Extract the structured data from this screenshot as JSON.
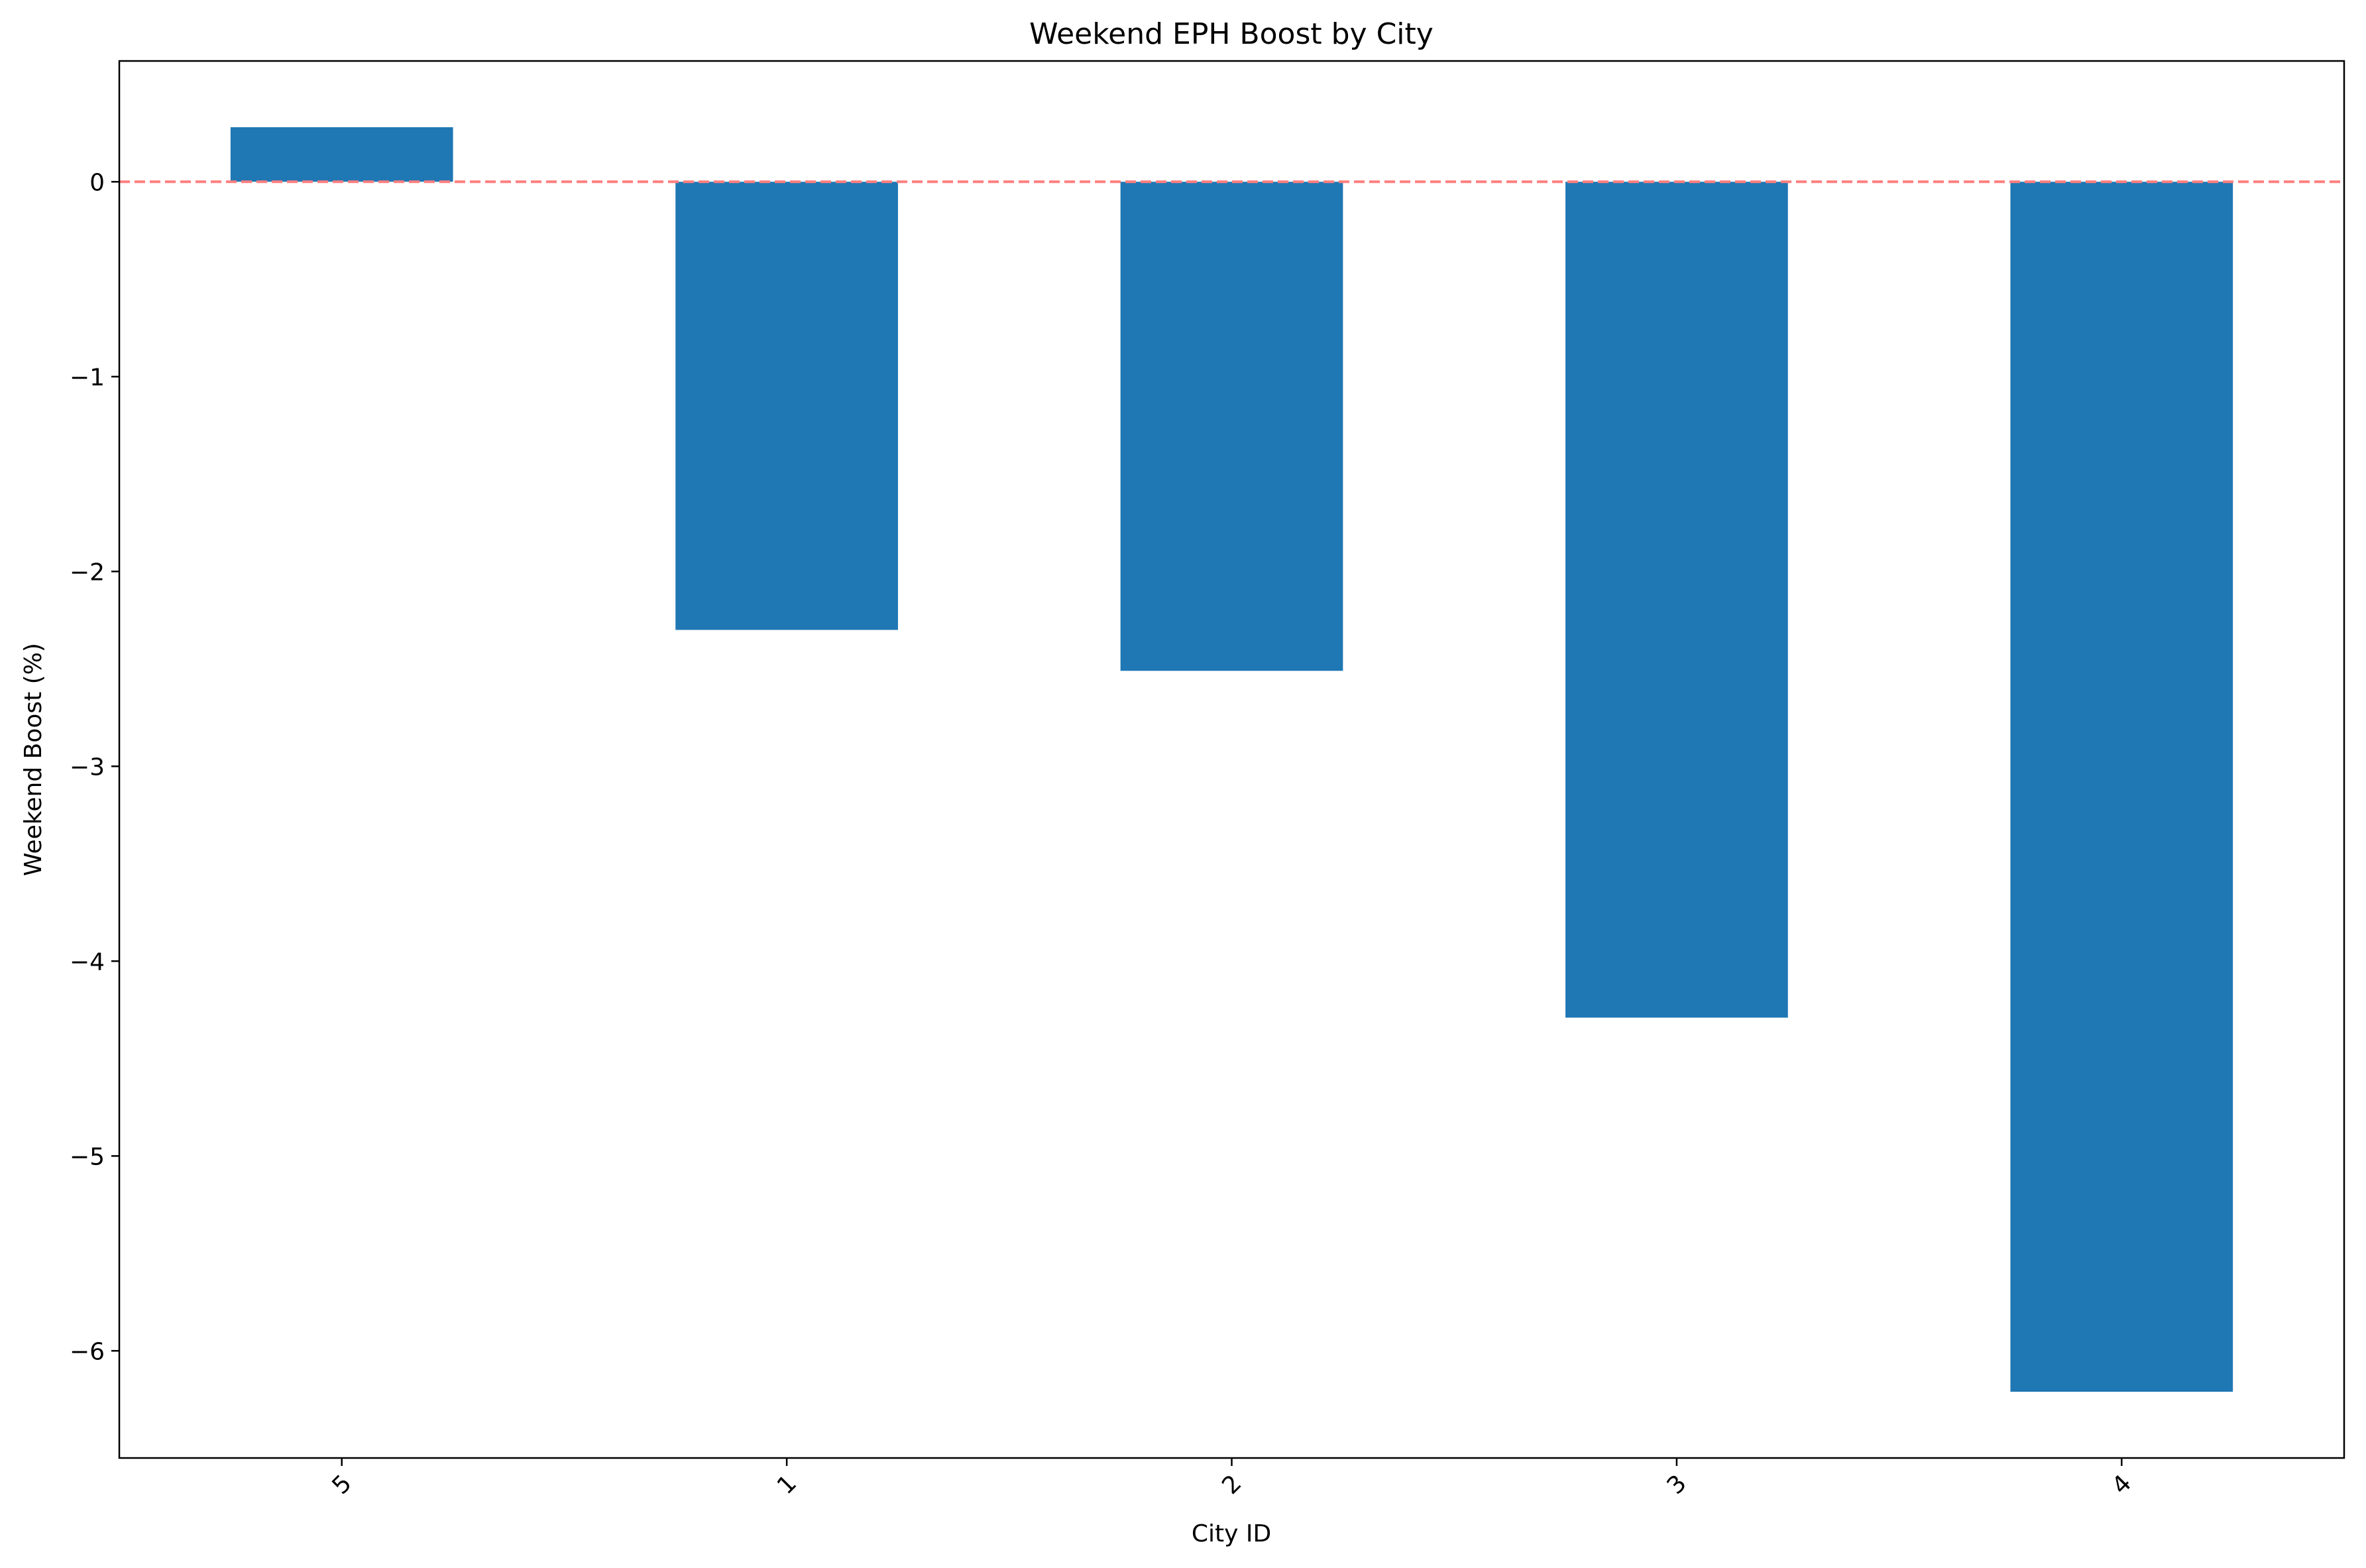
{
  "chart_data": {
    "type": "bar",
    "title": "Weekend EPH Boost by City",
    "xlabel": "City ID",
    "ylabel": "Weekend Boost (%)",
    "categories": [
      "5",
      "1",
      "2",
      "3",
      "4"
    ],
    "values": [
      0.28,
      -2.3,
      -2.51,
      -4.29,
      -6.21
    ],
    "ylim": [
      -6.55,
      0.62
    ],
    "yticks": [
      0,
      -1,
      -2,
      -3,
      -4,
      -5,
      -6
    ],
    "ytick_labels": [
      "0",
      "−1",
      "−2",
      "−3",
      "−4",
      "−5",
      "−6"
    ],
    "xtick_rotation": -45,
    "bar_color": "#1f77b4",
    "reference_line": {
      "y": 0,
      "color": "#ff7f7f",
      "style": "dashed"
    },
    "grid": false,
    "legend": false
  }
}
